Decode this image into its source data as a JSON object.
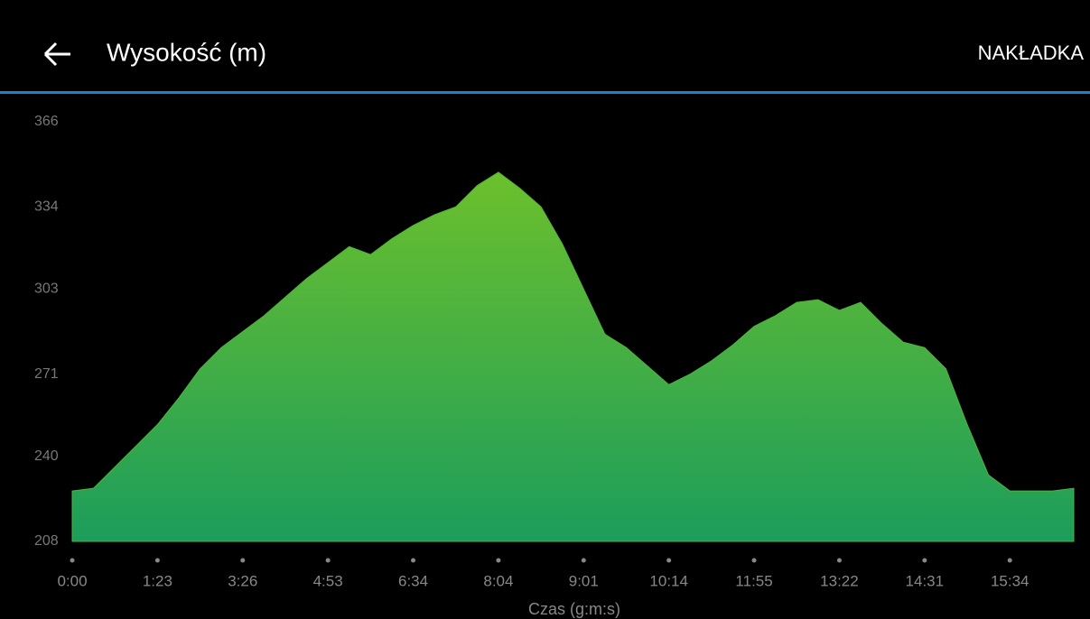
{
  "header": {
    "title": "Wysokość (m)",
    "action": "NAKŁADKA"
  },
  "chart_data": {
    "type": "area",
    "x_label": "Czas (g:m:s)",
    "categories": [
      "0:00",
      null,
      null,
      null,
      "1:23",
      null,
      null,
      null,
      "3:26",
      null,
      null,
      null,
      "4:53",
      null,
      null,
      null,
      "6:34",
      null,
      null,
      null,
      "8:04",
      null,
      null,
      null,
      "9:01",
      null,
      null,
      null,
      "10:14",
      null,
      null,
      null,
      "11:55",
      null,
      null,
      null,
      "13:22",
      null,
      null,
      null,
      "14:31",
      null,
      null,
      null,
      "15:34",
      null,
      null,
      null
    ],
    "values": [
      227,
      228,
      236,
      244,
      252,
      262,
      273,
      281,
      287,
      293,
      300,
      307,
      313,
      319,
      316,
      322,
      327,
      331,
      334,
      342,
      347,
      341,
      334,
      320,
      303,
      286,
      281,
      274,
      267,
      271,
      276,
      282,
      289,
      293,
      298,
      299,
      295,
      298,
      290,
      283,
      281,
      273,
      252,
      233,
      227,
      227,
      227,
      228
    ],
    "color": "#4fb43c",
    "ylim": [
      208,
      366
    ],
    "yticks": [
      208,
      240,
      271,
      303,
      334,
      366
    ]
  }
}
